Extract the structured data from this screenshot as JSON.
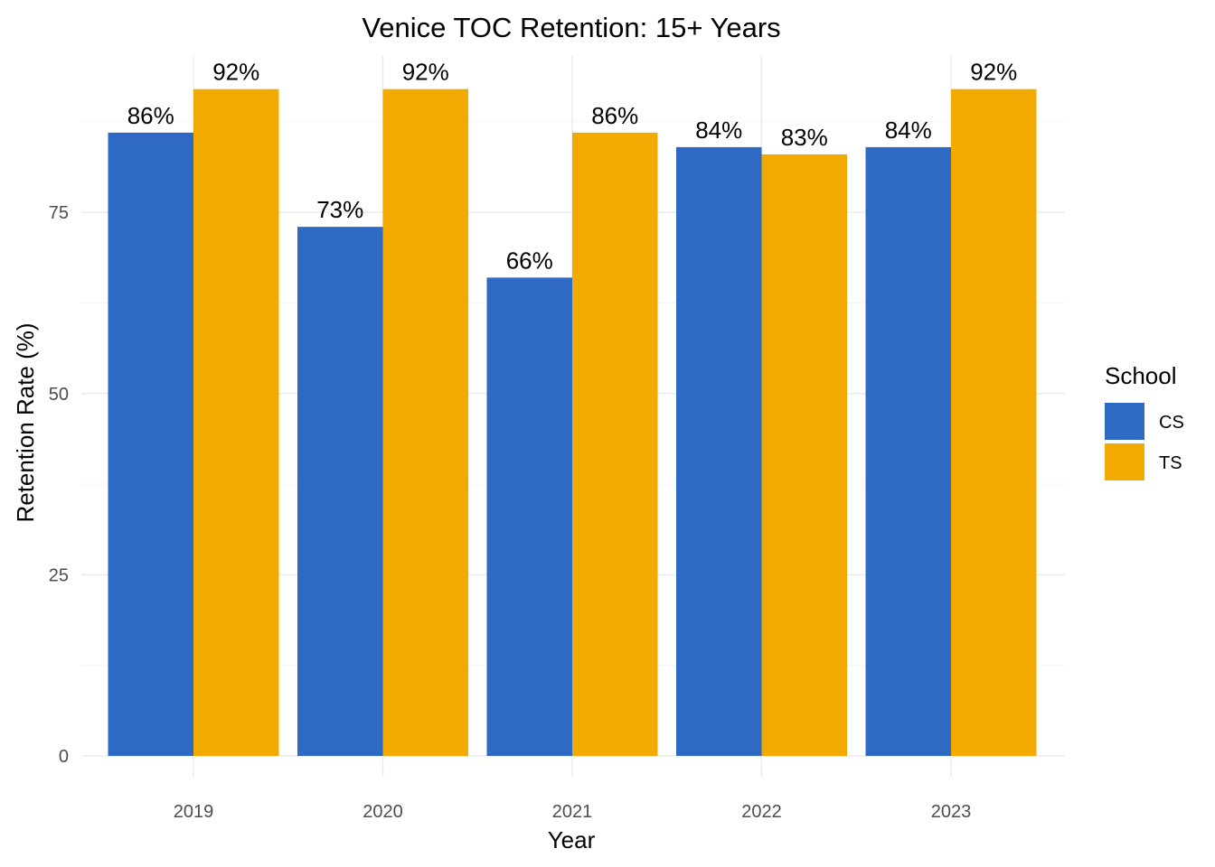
{
  "chart_data": {
    "type": "bar",
    "title": "Venice TOC Retention: 15+ Years",
    "xlabel": "Year",
    "ylabel": "Retention Rate (%)",
    "categories": [
      "2019",
      "2020",
      "2021",
      "2022",
      "2023"
    ],
    "series": [
      {
        "name": "CS",
        "color": "#2e69c4",
        "values": [
          86,
          73,
          66,
          84,
          84
        ],
        "labels": [
          "86%",
          "73%",
          "66%",
          "84%",
          "84%"
        ]
      },
      {
        "name": "TS",
        "color": "#f2aa00",
        "values": [
          92,
          92,
          86,
          83,
          92
        ],
        "labels": [
          "92%",
          "92%",
          "86%",
          "83%",
          "92%"
        ]
      }
    ],
    "ylim": [
      0,
      100
    ],
    "yticks": [
      0,
      25,
      50,
      75
    ],
    "ytick_labels": [
      "0",
      "25",
      "50",
      "75"
    ],
    "grid": true,
    "legend": {
      "title": "School",
      "position": "right"
    }
  }
}
